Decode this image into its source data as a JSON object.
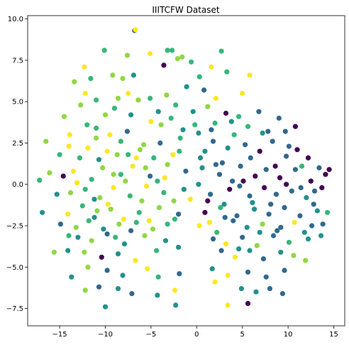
{
  "chart_data": {
    "type": "scatter",
    "title": "IIITCFW Dataset",
    "xlabel": "",
    "ylabel": "",
    "xlim": [
      -18.5,
      16.2
    ],
    "ylim": [
      -8.55,
      10.2
    ],
    "xticks": [
      -15,
      -10,
      -5,
      0,
      5,
      10,
      15
    ],
    "xtick_labels": [
      "−15",
      "−10",
      "−5",
      "0",
      "5",
      "10",
      "15"
    ],
    "yticks": [
      -7.5,
      -5.0,
      -2.5,
      0.0,
      2.5,
      5.0,
      7.5,
      10.0
    ],
    "ytick_labels": [
      "−7.5",
      "−5.0",
      "−2.5",
      "0.0",
      "2.5",
      "5.0",
      "7.5",
      "10.0"
    ],
    "grid": false,
    "legend": "none",
    "class_colors": [
      "#440154",
      "#31688e",
      "#21918c",
      "#35b779",
      "#90d743",
      "#fde725"
    ],
    "points": [
      [
        -6.8,
        9.3,
        1
      ],
      [
        -6.7,
        9.35,
        5
      ],
      [
        -12.3,
        7.1,
        5
      ],
      [
        -10.1,
        8.1,
        3
      ],
      [
        -7.6,
        7.8,
        4
      ],
      [
        -5.1,
        7.9,
        5
      ],
      [
        -3.2,
        8.1,
        3
      ],
      [
        -2.7,
        8.1,
        3
      ],
      [
        -1.6,
        7.7,
        4
      ],
      [
        -0.6,
        7.4,
        3
      ],
      [
        1.6,
        7.1,
        5
      ],
      [
        2.7,
        8.05,
        3
      ],
      [
        -13.4,
        6.2,
        4
      ],
      [
        -11.6,
        6.4,
        3
      ],
      [
        -9.2,
        6.6,
        4
      ],
      [
        -8.1,
        6.4,
        4
      ],
      [
        -6.9,
        6.6,
        2
      ],
      [
        -3.6,
        7.2,
        0
      ],
      [
        -2.1,
        7.6,
        4
      ],
      [
        0.3,
        6.5,
        3
      ],
      [
        3.3,
        6.8,
        3
      ],
      [
        5.8,
        6.6,
        5
      ],
      [
        -12.2,
        5.5,
        5
      ],
      [
        -11.0,
        5.1,
        3
      ],
      [
        -8.6,
        5.2,
        4
      ],
      [
        -7.5,
        5.5,
        5
      ],
      [
        -5.1,
        5.2,
        3
      ],
      [
        -3.3,
        5.4,
        4
      ],
      [
        -1.1,
        5.9,
        2
      ],
      [
        0.8,
        5.7,
        1
      ],
      [
        2.1,
        5.2,
        5
      ],
      [
        5.0,
        5.5,
        5
      ],
      [
        -14.5,
        4.1,
        4
      ],
      [
        -12.0,
        3.6,
        3
      ],
      [
        -10.0,
        4.2,
        4
      ],
      [
        -7.2,
        4.2,
        2
      ],
      [
        -5.0,
        3.8,
        5
      ],
      [
        -2.8,
        4.0,
        3
      ],
      [
        -0.4,
        4.4,
        2
      ],
      [
        1.2,
        4.7,
        4
      ],
      [
        3.2,
        4.3,
        0
      ],
      [
        4.6,
        4.1,
        3
      ],
      [
        6.8,
        4.4,
        1
      ],
      [
        9.0,
        4.0,
        1
      ],
      [
        10.8,
        3.5,
        0
      ],
      [
        -16.5,
        2.6,
        4
      ],
      [
        -14.0,
        2.3,
        5
      ],
      [
        -12.8,
        1.6,
        3
      ],
      [
        -11.0,
        2.8,
        4
      ],
      [
        -9.8,
        2.0,
        5
      ],
      [
        -8.3,
        2.6,
        3
      ],
      [
        -6.2,
        2.1,
        4
      ],
      [
        -4.0,
        2.5,
        1
      ],
      [
        -1.8,
        2.8,
        3
      ],
      [
        0.2,
        3.1,
        2
      ],
      [
        1.8,
        2.6,
        1
      ],
      [
        3.4,
        2.2,
        2
      ],
      [
        5.3,
        2.4,
        1
      ],
      [
        6.9,
        2.0,
        0
      ],
      [
        8.3,
        2.6,
        1
      ],
      [
        10.1,
        2.3,
        1
      ],
      [
        12.2,
        1.6,
        0
      ],
      [
        13.4,
        1.0,
        1
      ],
      [
        -16.1,
        0.7,
        4
      ],
      [
        -14.6,
        0.5,
        0
      ],
      [
        -13.5,
        0.8,
        5
      ],
      [
        -11.5,
        0.3,
        3
      ],
      [
        -10.3,
        1.0,
        4
      ],
      [
        -8.3,
        0.6,
        3
      ],
      [
        -7.0,
        1.1,
        5
      ],
      [
        -5.1,
        0.5,
        1
      ],
      [
        -3.2,
        1.2,
        4
      ],
      [
        -1.2,
        0.8,
        1
      ],
      [
        0.6,
        1.0,
        2
      ],
      [
        2.5,
        0.6,
        1
      ],
      [
        4.8,
        1.1,
        1
      ],
      [
        6.4,
        0.5,
        0
      ],
      [
        7.6,
        0.9,
        1
      ],
      [
        9.1,
        0.4,
        0
      ],
      [
        10.8,
        0.9,
        1
      ],
      [
        12.5,
        0.2,
        0
      ],
      [
        14.1,
        0.6,
        0
      ],
      [
        14.5,
        0.9,
        0
      ],
      [
        -17.2,
        0.25,
        3
      ],
      [
        -15.3,
        -0.6,
        2
      ],
      [
        -13.8,
        -0.5,
        4
      ],
      [
        -12.2,
        -0.3,
        3
      ],
      [
        -10.6,
        -0.8,
        4
      ],
      [
        -9.1,
        -0.2,
        5
      ],
      [
        -7.3,
        -0.7,
        3
      ],
      [
        -5.5,
        -0.1,
        5
      ],
      [
        -3.6,
        -0.5,
        3
      ],
      [
        -1.4,
        -0.3,
        2
      ],
      [
        1.5,
        -0.6,
        1
      ],
      [
        3.6,
        -0.3,
        0
      ],
      [
        5.8,
        -0.7,
        1
      ],
      [
        7.4,
        -0.2,
        0
      ],
      [
        8.7,
        -0.6,
        1
      ],
      [
        10.4,
        -0.4,
        1
      ],
      [
        12.0,
        -0.8,
        2
      ],
      [
        13.7,
        -0.2,
        0
      ],
      [
        -16.9,
        -1.7,
        2
      ],
      [
        -14.1,
        -1.8,
        5
      ],
      [
        -12.5,
        -1.3,
        3
      ],
      [
        -11.2,
        -2.0,
        2
      ],
      [
        -9.4,
        -1.5,
        4
      ],
      [
        -8.0,
        -2.1,
        5
      ],
      [
        -6.3,
        -1.7,
        3
      ],
      [
        -4.1,
        -1.4,
        4
      ],
      [
        -2.0,
        -1.8,
        1
      ],
      [
        0.9,
        -1.7,
        0
      ],
      [
        2.6,
        -1.4,
        3
      ],
      [
        4.4,
        -1.9,
        1
      ],
      [
        6.3,
        -1.5,
        2
      ],
      [
        7.9,
        -1.8,
        1
      ],
      [
        9.6,
        -1.4,
        1
      ],
      [
        11.3,
        -1.9,
        1
      ],
      [
        13.2,
        -1.6,
        2
      ],
      [
        14.3,
        -1.7,
        3
      ],
      [
        -14.9,
        -2.4,
        1
      ],
      [
        -13.2,
        -2.6,
        4
      ],
      [
        -11.8,
        -2.2,
        3
      ],
      [
        -10.2,
        -2.7,
        2
      ],
      [
        -8.5,
        -2.4,
        4
      ],
      [
        -6.6,
        -2.3,
        3
      ],
      [
        -4.8,
        -2.7,
        4
      ],
      [
        -3.2,
        -2.4,
        3
      ],
      [
        0.3,
        -2.5,
        5
      ],
      [
        2.2,
        -2.9,
        3
      ],
      [
        4.0,
        -2.2,
        1
      ],
      [
        5.5,
        -2.6,
        2
      ],
      [
        7.2,
        -2.4,
        4
      ],
      [
        8.8,
        -2.8,
        1
      ],
      [
        10.7,
        -2.3,
        5
      ],
      [
        12.6,
        -2.5,
        1
      ],
      [
        -13.0,
        -3.2,
        2
      ],
      [
        -11.5,
        -3.4,
        4
      ],
      [
        -9.8,
        -3.0,
        1
      ],
      [
        -7.9,
        -3.6,
        2
      ],
      [
        -5.7,
        -3.1,
        4
      ],
      [
        -3.4,
        -3.4,
        2
      ],
      [
        1.8,
        -3.3,
        1
      ],
      [
        3.2,
        -3.6,
        5
      ],
      [
        5.0,
        -3.2,
        1
      ],
      [
        6.6,
        -3.7,
        4
      ],
      [
        8.4,
        -3.1,
        1
      ],
      [
        10.1,
        -3.5,
        3
      ],
      [
        12.2,
        -3.3,
        2
      ],
      [
        13.6,
        -3.1,
        2
      ],
      [
        -15.6,
        -4.1,
        4
      ],
      [
        -14.1,
        -4.0,
        2
      ],
      [
        -12.3,
        -4.1,
        4
      ],
      [
        -10.4,
        -4.4,
        0
      ],
      [
        -8.6,
        -4.2,
        2
      ],
      [
        -6.7,
        -4.6,
        5
      ],
      [
        -4.4,
        -4.0,
        3
      ],
      [
        -2.0,
        -3.8,
        2
      ],
      [
        2.7,
        -4.0,
        1
      ],
      [
        4.2,
        -4.4,
        5
      ],
      [
        5.8,
        -4.0,
        2
      ],
      [
        7.3,
        -4.5,
        1
      ],
      [
        9.2,
        -4.1,
        2
      ],
      [
        10.6,
        -4.3,
        4
      ],
      [
        11.9,
        -4.6,
        4
      ],
      [
        -13.7,
        -5.6,
        2
      ],
      [
        -11.9,
        -5.0,
        4
      ],
      [
        -9.8,
        -5.2,
        1
      ],
      [
        -8.1,
        -5.5,
        2
      ],
      [
        -5.4,
        -5.1,
        5
      ],
      [
        -4.2,
        -5.6,
        3
      ],
      [
        -1.9,
        -5.4,
        1
      ],
      [
        1.7,
        -5.1,
        2
      ],
      [
        3.4,
        -5.5,
        5
      ],
      [
        5.6,
        -5.3,
        1
      ],
      [
        7.6,
        -5.6,
        1
      ],
      [
        9.6,
        -5.2,
        1
      ],
      [
        -12.2,
        -6.4,
        4
      ],
      [
        -10.7,
        -6.2,
        1
      ],
      [
        -8.6,
        -6.3,
        2
      ],
      [
        -7.1,
        -6.6,
        1
      ],
      [
        -4.3,
        -6.7,
        2
      ],
      [
        -2.4,
        -6.4,
        5
      ],
      [
        2.0,
        -5.9,
        5
      ],
      [
        4.9,
        -6.3,
        2
      ],
      [
        6.5,
        -6.5,
        2
      ],
      [
        8.0,
        -6.3,
        1
      ],
      [
        9.4,
        -6.6,
        1
      ],
      [
        -10.0,
        -7.4,
        2
      ],
      [
        -2.3,
        -7.3,
        2
      ],
      [
        3.4,
        -7.3,
        5
      ],
      [
        5.6,
        -7.2,
        0
      ],
      [
        -11.0,
        3.4,
        3
      ],
      [
        -9.5,
        3.0,
        5
      ],
      [
        -8.7,
        1.8,
        4
      ],
      [
        -7.6,
        3.2,
        1
      ],
      [
        -6.6,
        1.6,
        5
      ],
      [
        -5.8,
        2.4,
        4
      ],
      [
        -4.7,
        1.6,
        3
      ],
      [
        -3.9,
        3.6,
        4
      ],
      [
        -2.6,
        1.8,
        5
      ],
      [
        -1.5,
        3.3,
        2
      ],
      [
        0.9,
        2.0,
        2
      ],
      [
        2.0,
        3.7,
        3
      ],
      [
        2.8,
        1.3,
        1
      ],
      [
        4.1,
        3.0,
        3
      ],
      [
        5.9,
        1.6,
        1
      ],
      [
        7.2,
        3.1,
        2
      ],
      [
        8.6,
        1.1,
        0
      ],
      [
        9.7,
        3.2,
        1
      ],
      [
        11.5,
        1.1,
        3
      ],
      [
        12.9,
        -0.4,
        1
      ],
      [
        -13.1,
        0.1,
        5
      ],
      [
        -11.2,
        -0.9,
        2
      ],
      [
        -9.7,
        -1.2,
        5
      ],
      [
        -7.8,
        0.2,
        4
      ],
      [
        -6.0,
        -1.0,
        4
      ],
      [
        -4.3,
        0.2,
        3
      ],
      [
        -2.5,
        -1.0,
        4
      ],
      [
        -0.7,
        -0.9,
        5
      ],
      [
        0.2,
        0.0,
        2
      ],
      [
        1.2,
        -1.0,
        0
      ],
      [
        3.0,
        -1.2,
        2
      ],
      [
        4.7,
        -0.1,
        1
      ],
      [
        6.1,
        -1.1,
        2
      ],
      [
        8.1,
        -1.2,
        1
      ],
      [
        9.8,
        0.0,
        0
      ],
      [
        11.4,
        -0.2,
        1
      ],
      [
        12.8,
        -1.2,
        1
      ],
      [
        -14.0,
        -3.1,
        3
      ],
      [
        -10.9,
        -1.6,
        4
      ],
      [
        -8.9,
        -3.2,
        3
      ],
      [
        -7.2,
        -2.8,
        1
      ],
      [
        -5.2,
        -2.2,
        5
      ],
      [
        -2.4,
        -2.1,
        3
      ],
      [
        1.4,
        -2.3,
        5
      ],
      [
        3.1,
        -2.0,
        1
      ],
      [
        6.9,
        -2.9,
        2
      ],
      [
        9.2,
        -2.6,
        1
      ],
      [
        11.8,
        -2.9,
        2
      ],
      [
        13.8,
        -2.4,
        1
      ],
      [
        4.6,
        -3.9,
        2
      ],
      [
        -12.7,
        4.8,
        4
      ],
      [
        -9.0,
        4.6,
        3
      ],
      [
        -6.4,
        5.1,
        4
      ],
      [
        -4.2,
        4.4,
        2
      ],
      [
        -2.3,
        4.8,
        3
      ],
      [
        -0.2,
        3.6,
        3
      ],
      [
        1.6,
        3.3,
        1
      ],
      [
        3.8,
        3.8,
        2
      ],
      [
        5.6,
        3.5,
        3
      ],
      [
        7.8,
        3.2,
        1
      ],
      [
        9.8,
        1.7,
        1
      ],
      [
        11.0,
        2.1,
        0
      ],
      [
        -15.0,
        1.8,
        3
      ],
      [
        -13.9,
        3.0,
        5
      ],
      [
        -11.9,
        2.2,
        5
      ],
      [
        -10.7,
        1.5,
        2
      ],
      [
        -9.1,
        0.6,
        4
      ],
      [
        -7.5,
        1.8,
        3
      ],
      [
        -5.6,
        1.0,
        4
      ],
      [
        -3.5,
        0.4,
        5
      ],
      [
        -1.9,
        2.0,
        3
      ],
      [
        0.4,
        1.6,
        2
      ],
      [
        2.1,
        1.2,
        1
      ],
      [
        3.9,
        0.2,
        1
      ],
      [
        5.1,
        0.2,
        0
      ]
    ]
  }
}
